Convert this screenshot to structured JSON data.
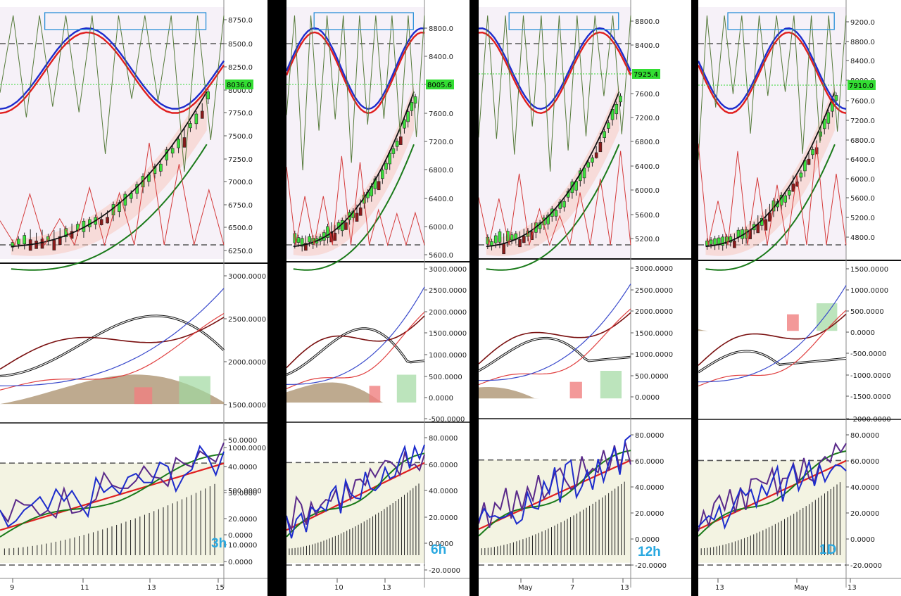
{
  "chart_data": [
    {
      "type": "line",
      "timeframe": "3h",
      "price_axis": [
        "8750.0",
        "8500.0",
        "8250.0",
        "8000.0",
        "7750.0",
        "7500.0",
        "7250.0",
        "7000.0",
        "6750.0",
        "6500.0",
        "6250.0"
      ],
      "price_label": "8036.0",
      "mid_axis": [
        "3000.0000",
        "2500.0000",
        "2000.0000",
        "1500.0000",
        "1000.0000",
        "500.0000",
        "0.0000"
      ],
      "low_axis": [
        "50.0000",
        "40.0000",
        "30.0000",
        "20.0000",
        "10.0000",
        "0.0000"
      ],
      "x_ticks": [
        "9",
        "11",
        "13",
        "15"
      ]
    },
    {
      "type": "line",
      "timeframe": "6h",
      "price_axis": [
        "8800.0",
        "8400.0",
        "8005.6",
        "7600.0",
        "7200.0",
        "6800.0",
        "6400.0",
        "6000.0",
        "5600.0"
      ],
      "price_label": "8005.6",
      "mid_axis": [
        "3000.0000",
        "2500.0000",
        "2000.0000",
        "1500.0000",
        "1000.0000",
        "500.0000",
        "0.0000",
        "-500.0000"
      ],
      "low_axis": [
        "80.0000",
        "60.0000",
        "40.0000",
        "20.0000",
        "0.0000",
        "-20.0000"
      ],
      "x_ticks": [
        "10",
        "13"
      ]
    },
    {
      "type": "line",
      "timeframe": "12h",
      "price_axis": [
        "8800.0",
        "8400.0",
        "8000.0",
        "7600.0",
        "7200.0",
        "6800.0",
        "6400.0",
        "6000.0",
        "5600.0",
        "5200.0"
      ],
      "price_label": "7925.4",
      "mid_axis": [
        "3000.0000",
        "2500.0000",
        "2000.0000",
        "1500.0000",
        "1000.0000",
        "500.0000",
        "0.0000"
      ],
      "low_axis": [
        "80.0000",
        "60.0000",
        "40.0000",
        "20.0000",
        "0.0000",
        "-20.0000"
      ],
      "x_ticks": [
        "May",
        "7",
        "13"
      ]
    },
    {
      "type": "line",
      "timeframe": "1D",
      "price_axis": [
        "9200.0",
        "8800.0",
        "8400.0",
        "8000.0",
        "7600.0",
        "7200.0",
        "6800.0",
        "6400.0",
        "6000.0",
        "5600.0",
        "5200.0",
        "4800.0"
      ],
      "price_label": "7910.0",
      "mid_axis": [
        "1500.0000",
        "1000.0000",
        "500.0000",
        "0.0000",
        "-500.0000",
        "-1000.0000",
        "-1500.0000",
        "-2000.0000"
      ],
      "low_axis": [
        "80.0000",
        "60.0000",
        "40.0000",
        "20.0000",
        "0.0000",
        "-20.0000"
      ],
      "x_ticks": [
        "13",
        "May",
        "13"
      ]
    }
  ]
}
